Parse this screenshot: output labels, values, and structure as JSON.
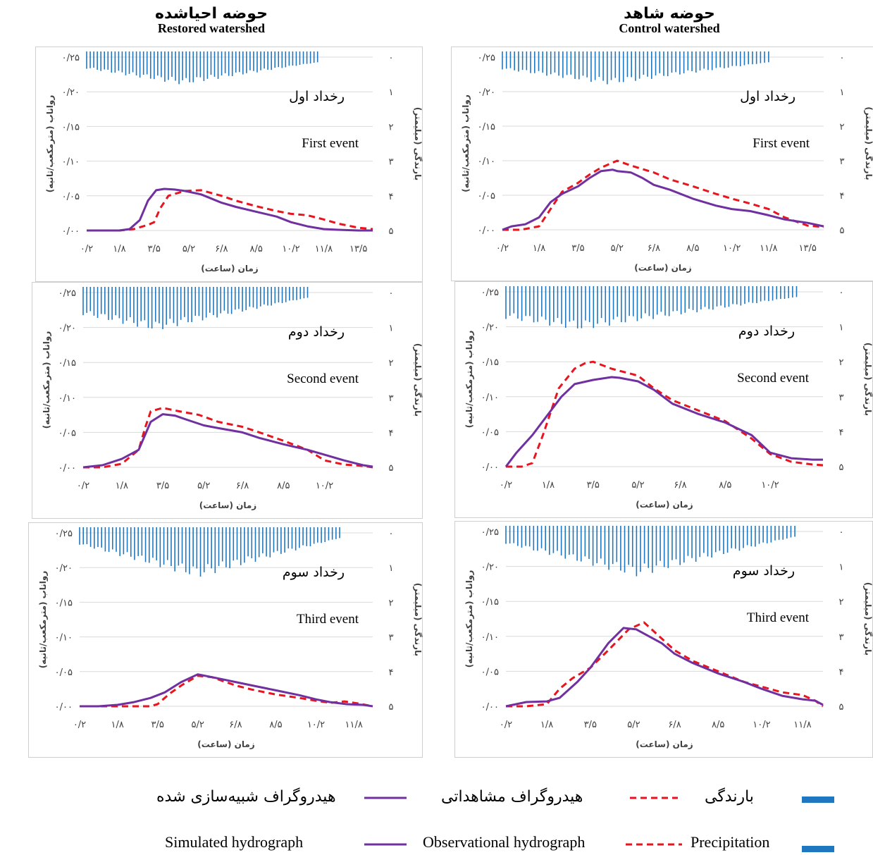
{
  "titles": {
    "right": {
      "fa": "حوضه شاهد",
      "en": "Control watershed"
    },
    "left": {
      "fa": "حوضه احیاشده",
      "en": "Restored watershed"
    }
  },
  "colors": {
    "precip": "#1f77c0",
    "observed": "#e8141e",
    "simulated": "#7030a0",
    "grid": "#d9d9d9",
    "axis": "#7f7f7f"
  },
  "common_labels": {
    "y_left": "رواناب (مترمکعب/ثانیه)",
    "y_right": "بارندگی (میلیمتر)",
    "x": "زمان (ساعت)"
  },
  "legend": {
    "fa": {
      "precip": "بارندگی",
      "observed": "هیدروگراف مشاهداتی",
      "simulated": "هیدروگراف شبیه‌سازی شده"
    },
    "en": {
      "precip": "Precipitation",
      "observed": "Observational hydrograph",
      "simulated": "Simulated hydrograph"
    }
  },
  "chart_data": [
    {
      "type": "line",
      "watershed": "Control watershed",
      "event_fa": "رخداد اول",
      "event_en": "First event",
      "x_ticks": [
        "۰/۲",
        "۱/۸",
        "۳/۵",
        "۵/۲",
        "۶/۸",
        "۸/۵",
        "۱۰/۲",
        "۱۱/۸",
        "۱۳/۵"
      ],
      "y_ticks": [
        "۰/۰۰",
        "۰/۰۵",
        "۰/۱۰",
        "۰/۱۵",
        "۰/۲۰",
        "۰/۲۵"
      ],
      "y2_ticks": [
        "۰",
        "۱",
        "۲",
        "۳",
        "۴",
        "۵"
      ],
      "x_range": [
        0.2,
        14.2
      ],
      "ylim": [
        0,
        0.25
      ],
      "y2lim": [
        0,
        5
      ],
      "precip": {
        "x0": 0.2,
        "x1": 11.8,
        "peak_x": 4.9,
        "peak": 0.8,
        "edge": 0.15
      },
      "series": [
        {
          "name": "Observational hydrograph",
          "x": [
            0.2,
            1.0,
            1.8,
            2.3,
            2.8,
            3.5,
            4.0,
            4.5,
            5.2,
            5.8,
            6.8,
            7.5,
            8.5,
            9.5,
            10.2,
            11.0,
            11.8,
            12.5,
            13.5,
            14.2
          ],
          "y": [
            0,
            0,
            0.005,
            0.03,
            0.055,
            0.068,
            0.08,
            0.09,
            0.1,
            0.093,
            0.083,
            0.073,
            0.063,
            0.052,
            0.045,
            0.038,
            0.03,
            0.018,
            0.006,
            0.004
          ]
        },
        {
          "name": "Simulated hydrograph",
          "x": [
            0.2,
            0.6,
            1.2,
            1.8,
            2.3,
            2.8,
            3.5,
            4.0,
            4.5,
            5.0,
            5.2,
            5.8,
            6.3,
            6.8,
            7.5,
            8.5,
            9.5,
            10.2,
            11.0,
            11.8,
            12.5,
            13.5,
            14.2
          ],
          "y": [
            0,
            0.005,
            0.008,
            0.018,
            0.04,
            0.052,
            0.063,
            0.075,
            0.085,
            0.087,
            0.085,
            0.083,
            0.075,
            0.065,
            0.058,
            0.045,
            0.035,
            0.03,
            0.027,
            0.021,
            0.015,
            0.01,
            0.005
          ]
        }
      ]
    },
    {
      "type": "line",
      "watershed": "Control watershed",
      "event_fa": "رخداد دوم",
      "event_en": "Second event",
      "x_ticks": [
        "۰/۲",
        "۱/۸",
        "۳/۵",
        "۵/۲",
        "۶/۸",
        "۸/۵",
        "۱۰/۲"
      ],
      "y_ticks": [
        "۰/۰۰",
        "۰/۰۵",
        "۰/۱۰",
        "۰/۱۵",
        "۰/۲۰",
        "۰/۲۵"
      ],
      "y2_ticks": [
        "۰",
        "۱",
        "۲",
        "۳",
        "۴",
        "۵"
      ],
      "x_range": [
        0.2,
        12.2
      ],
      "ylim": [
        0,
        0.25
      ],
      "y2lim": [
        0,
        5
      ],
      "precip": {
        "x0": 0.2,
        "x1": 11.2,
        "peak_x": 3.0,
        "peak": 1.1,
        "edge": 0.15
      },
      "series": [
        {
          "name": "Observational hydrograph",
          "x": [
            0.2,
            0.8,
            1.2,
            1.6,
            2.2,
            2.8,
            3.2,
            3.5,
            4.2,
            5.2,
            5.8,
            6.5,
            7.5,
            8.5,
            9.5,
            10.2,
            11.0,
            11.8,
            12.2
          ],
          "y": [
            0,
            0,
            0.005,
            0.045,
            0.112,
            0.14,
            0.148,
            0.15,
            0.14,
            0.13,
            0.112,
            0.095,
            0.08,
            0.065,
            0.04,
            0.018,
            0.007,
            0.003,
            0.002
          ]
        },
        {
          "name": "Simulated hydrograph",
          "x": [
            0.2,
            0.6,
            1.2,
            1.8,
            2.3,
            2.8,
            3.5,
            4.2,
            4.5,
            5.2,
            5.8,
            6.5,
            7.5,
            8.5,
            9.5,
            10.2,
            11.0,
            11.8,
            12.2
          ],
          "y": [
            0,
            0.02,
            0.045,
            0.075,
            0.1,
            0.118,
            0.124,
            0.128,
            0.127,
            0.122,
            0.11,
            0.09,
            0.075,
            0.063,
            0.045,
            0.02,
            0.012,
            0.01,
            0.01
          ]
        }
      ]
    },
    {
      "type": "line",
      "watershed": "Control watershed",
      "event_fa": "رخداد سوم",
      "event_en": "Third event",
      "x_ticks": [
        "۰/۲",
        "۱/۸",
        "۳/۵",
        "۵/۲",
        "۶/۸",
        "۸/۵",
        "۱۰/۲",
        "۱۱/۸"
      ],
      "y_ticks": [
        "۰/۰۰",
        "۰/۰۵",
        "۰/۱۰",
        "۰/۱۵",
        "۰/۲۰",
        "۰/۲۵"
      ],
      "y2_ticks": [
        "۰",
        "۱",
        "۲",
        "۳",
        "۴",
        "۵"
      ],
      "x_range": [
        0.2,
        12.6
      ],
      "ylim": [
        0,
        0.25
      ],
      "y2lim": [
        0,
        5
      ],
      "precip": {
        "x0": 0.2,
        "x1": 11.5,
        "peak_x": 5.3,
        "peak": 1.3,
        "edge": 0.15
      },
      "series": [
        {
          "name": "Observational hydrograph",
          "x": [
            0.2,
            1.0,
            1.8,
            2.3,
            2.8,
            3.5,
            4.2,
            5.0,
            5.6,
            6.2,
            6.8,
            7.5,
            8.5,
            9.5,
            10.2,
            11.0,
            11.8,
            12.3,
            12.6
          ],
          "y": [
            0,
            0,
            0.003,
            0.025,
            0.04,
            0.055,
            0.08,
            0.11,
            0.12,
            0.1,
            0.08,
            0.065,
            0.05,
            0.035,
            0.028,
            0.02,
            0.016,
            0.008,
            0
          ]
        },
        {
          "name": "Simulated hydrograph",
          "x": [
            0.2,
            1.0,
            1.8,
            2.3,
            3.0,
            3.5,
            4.2,
            4.8,
            5.3,
            5.8,
            6.3,
            6.8,
            7.5,
            8.5,
            9.5,
            10.2,
            11.0,
            11.8,
            12.3,
            12.6
          ],
          "y": [
            0,
            0.006,
            0.007,
            0.012,
            0.035,
            0.055,
            0.09,
            0.112,
            0.11,
            0.1,
            0.09,
            0.075,
            0.062,
            0.047,
            0.035,
            0.025,
            0.015,
            0.01,
            0.008,
            0.002
          ]
        }
      ]
    },
    {
      "type": "line",
      "watershed": "Restored watershed",
      "event_fa": "رخداد اول",
      "event_en": "First event",
      "x_ticks": [
        "۰/۲",
        "۱/۸",
        "۳/۵",
        "۵/۲",
        "۶/۸",
        "۸/۵",
        "۱۰/۲",
        "۱۱/۸",
        "۱۳/۵"
      ],
      "y_ticks": [
        "۰/۰۰",
        "۰/۰۵",
        "۰/۱۰",
        "۰/۱۵",
        "۰/۲۰",
        "۰/۲۵"
      ],
      "y2_ticks": [
        "۰",
        "۱",
        "۲",
        "۳",
        "۴",
        "۵"
      ],
      "x_range": [
        0.2,
        14.2
      ],
      "ylim": [
        0,
        0.25
      ],
      "y2lim": [
        0,
        5
      ],
      "precip": {
        "x0": 0.2,
        "x1": 11.5,
        "peak_x": 4.9,
        "peak": 0.8,
        "edge": 0.15
      },
      "series": [
        {
          "name": "Observational hydrograph",
          "x": [
            0.2,
            1.0,
            1.8,
            2.5,
            3.2,
            3.5,
            3.8,
            4.2,
            5.0,
            5.8,
            6.8,
            7.5,
            8.5,
            9.5,
            10.2,
            11.0,
            11.8,
            12.5,
            13.5,
            14.2
          ],
          "y": [
            0,
            0,
            0,
            0.002,
            0.008,
            0.012,
            0.032,
            0.05,
            0.057,
            0.058,
            0.05,
            0.043,
            0.035,
            0.028,
            0.024,
            0.022,
            0.016,
            0.01,
            0.004,
            0.002
          ]
        },
        {
          "name": "Simulated hydrograph",
          "x": [
            0.2,
            1.0,
            1.8,
            2.3,
            2.8,
            3.2,
            3.6,
            4.0,
            4.5,
            5.0,
            5.8,
            6.3,
            6.8,
            7.5,
            8.5,
            9.5,
            10.2,
            11.0,
            11.8,
            12.5,
            13.5,
            14.2
          ],
          "y": [
            0,
            0,
            0,
            0.002,
            0.015,
            0.043,
            0.058,
            0.06,
            0.059,
            0.057,
            0.052,
            0.046,
            0.04,
            0.034,
            0.027,
            0.02,
            0.012,
            0.006,
            0.002,
            0.001,
            0,
            0
          ]
        }
      ]
    },
    {
      "type": "line",
      "watershed": "Restored watershed",
      "event_fa": "رخداد دوم",
      "event_en": "Second event",
      "x_ticks": [
        "۰/۲",
        "۱/۸",
        "۳/۵",
        "۵/۲",
        "۶/۸",
        "۸/۵",
        "۱۰/۲"
      ],
      "y_ticks": [
        "۰/۰۰",
        "۰/۰۵",
        "۰/۱۰",
        "۰/۱۵",
        "۰/۲۰",
        "۰/۲۵"
      ],
      "y2_ticks": [
        "۰",
        "۱",
        "۲",
        "۳",
        "۴",
        "۵"
      ],
      "x_range": [
        0.2,
        12.2
      ],
      "ylim": [
        0,
        0.25
      ],
      "y2lim": [
        0,
        5
      ],
      "precip": {
        "x0": 0.2,
        "x1": 9.5,
        "peak_x": 3.2,
        "peak": 1.1,
        "edge": 0.15
      },
      "series": [
        {
          "name": "Observational hydrograph",
          "x": [
            0.2,
            1.0,
            1.8,
            2.5,
            2.8,
            3.0,
            3.5,
            4.2,
            5.0,
            5.8,
            6.8,
            7.5,
            8.5,
            9.5,
            10.2,
            11.0,
            11.8,
            12.2
          ],
          "y": [
            0,
            0,
            0.005,
            0.025,
            0.06,
            0.08,
            0.085,
            0.08,
            0.075,
            0.065,
            0.058,
            0.05,
            0.038,
            0.025,
            0.01,
            0.004,
            0.002,
            0
          ]
        },
        {
          "name": "Simulated hydrograph",
          "x": [
            0.2,
            1.0,
            1.8,
            2.5,
            3.0,
            3.5,
            4.0,
            4.5,
            5.2,
            5.8,
            6.8,
            7.5,
            8.5,
            9.5,
            10.2,
            11.0,
            11.8,
            12.2
          ],
          "y": [
            0,
            0.003,
            0.012,
            0.025,
            0.065,
            0.076,
            0.074,
            0.068,
            0.06,
            0.056,
            0.05,
            0.042,
            0.033,
            0.025,
            0.018,
            0.01,
            0.003,
            0.001
          ]
        }
      ]
    },
    {
      "type": "line",
      "watershed": "Restored watershed",
      "event_fa": "رخداد سوم",
      "event_en": "Third event",
      "x_ticks": [
        "۰/۲",
        "۱/۸",
        "۳/۵",
        "۵/۲",
        "۶/۸",
        "۸/۵",
        "۱۰/۲",
        "۱۱/۸"
      ],
      "y_ticks": [
        "۰/۰۰",
        "۰/۰۵",
        "۰/۱۰",
        "۰/۱۵",
        "۰/۲۰",
        "۰/۲۵"
      ],
      "y2_ticks": [
        "۰",
        "۱",
        "۲",
        "۳",
        "۴",
        "۵"
      ],
      "x_range": [
        0.2,
        12.6
      ],
      "ylim": [
        0,
        0.25
      ],
      "y2lim": [
        0,
        5
      ],
      "precip": {
        "x0": 0.2,
        "x1": 11.2,
        "peak_x": 5.2,
        "peak": 1.3,
        "edge": 0.15
      },
      "series": [
        {
          "name": "Observational hydrograph",
          "x": [
            0.2,
            1.8,
            3.2,
            3.5,
            4.0,
            4.5,
            5.2,
            5.8,
            6.8,
            7.5,
            8.5,
            9.5,
            10.2,
            10.8,
            11.4,
            12.0,
            12.6
          ],
          "y": [
            0,
            0,
            0,
            0.003,
            0.018,
            0.03,
            0.044,
            0.042,
            0.03,
            0.024,
            0.017,
            0.012,
            0.008,
            0.005,
            0.007,
            0.004,
            0
          ]
        },
        {
          "name": "Simulated hydrograph",
          "x": [
            0.2,
            1.0,
            1.8,
            2.5,
            3.2,
            3.8,
            4.5,
            5.2,
            5.8,
            6.8,
            7.5,
            8.5,
            9.5,
            10.2,
            10.8,
            11.5,
            12.2,
            12.6
          ],
          "y": [
            0,
            0,
            0.002,
            0.006,
            0.012,
            0.02,
            0.035,
            0.046,
            0.042,
            0.035,
            0.03,
            0.023,
            0.016,
            0.01,
            0.006,
            0.003,
            0.002,
            0
          ]
        }
      ]
    }
  ]
}
